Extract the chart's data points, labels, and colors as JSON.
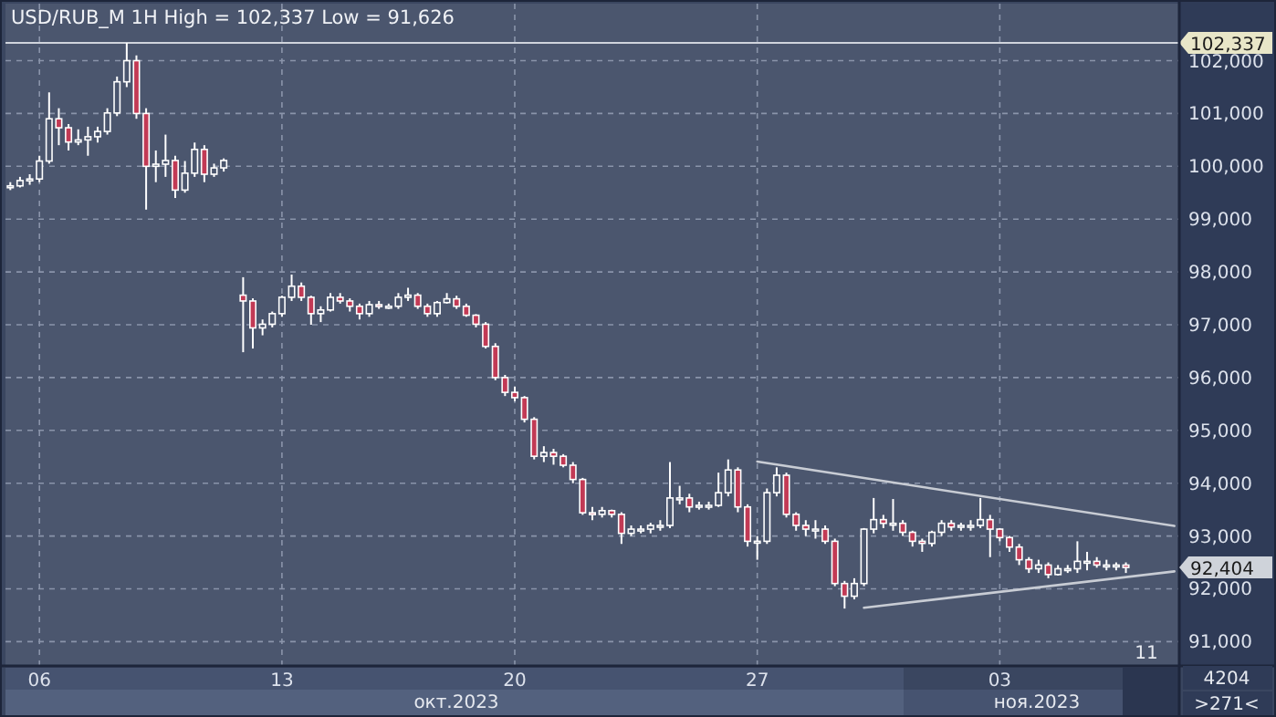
{
  "chart_data": {
    "type": "candlestick",
    "title": "USD/RUB_M 1H High = 102,337 Low = 91,626",
    "categories": [
      null,
      null,
      null,
      "06",
      null,
      null,
      null,
      null,
      null,
      null,
      null,
      null,
      null,
      null,
      null,
      null,
      null,
      null,
      null,
      null,
      null,
      null,
      null,
      null,
      null,
      null,
      null,
      null,
      "13",
      null,
      null,
      null,
      null,
      null,
      null,
      null,
      null,
      null,
      null,
      null,
      null,
      null,
      null,
      null,
      null,
      null,
      null,
      null,
      null,
      null,
      null,
      null,
      "20",
      null,
      null,
      null,
      null,
      null,
      null,
      null,
      null,
      null,
      null,
      null,
      null,
      null,
      null,
      null,
      null,
      null,
      null,
      null,
      null,
      null,
      null,
      null,
      null,
      "27",
      null,
      null,
      null,
      null,
      null,
      null,
      null,
      null,
      null,
      null,
      null,
      null,
      null,
      null,
      null,
      null,
      null,
      null,
      null,
      null,
      null,
      null,
      null,
      null,
      "03",
      null,
      null,
      null,
      null,
      null,
      null,
      null,
      null,
      null,
      null,
      null,
      null,
      null,
      null,
      null,
      null,
      null,
      null
    ],
    "series": [
      {
        "color": "#ffffff",
        "ohlc": [
          [
            99630,
            99700,
            99550,
            99630
          ],
          [
            99630,
            99800,
            99600,
            99730
          ],
          [
            99730,
            99850,
            99650,
            99760
          ],
          [
            99760,
            100200,
            99700,
            100100
          ],
          [
            100100,
            101400,
            100050,
            100900
          ],
          [
            100900,
            101100,
            100400,
            100730
          ],
          [
            100730,
            100800,
            100300,
            100460
          ],
          [
            100460,
            100700,
            100400,
            100500
          ],
          [
            100500,
            100750,
            100200,
            100560
          ],
          [
            100560,
            100750,
            100450,
            100660
          ],
          [
            100660,
            101100,
            100600,
            101010
          ],
          [
            101010,
            101700,
            100950,
            101600
          ],
          [
            101600,
            102337,
            101500,
            102000
          ],
          [
            102000,
            102100,
            100900,
            101000
          ],
          [
            101000,
            101100,
            99180,
            100000
          ],
          [
            100000,
            100300,
            99700,
            100040
          ],
          [
            100040,
            100600,
            99800,
            100110
          ],
          [
            100110,
            100200,
            99400,
            99550
          ],
          [
            99550,
            100100,
            99500,
            99870
          ],
          [
            99870,
            100450,
            99800,
            100320
          ],
          [
            100320,
            100400,
            99700,
            99850
          ],
          [
            99850,
            100050,
            99800,
            99970
          ],
          [
            99970,
            100150,
            99900,
            100110
          ],
          null,
          [
            97560,
            97900,
            96480,
            97450
          ],
          [
            97450,
            97500,
            96550,
            96940
          ],
          [
            96940,
            97100,
            96800,
            97010
          ],
          [
            97010,
            97250,
            96950,
            97210
          ],
          [
            97210,
            97550,
            97150,
            97520
          ],
          [
            97520,
            97950,
            97450,
            97730
          ],
          [
            97730,
            97800,
            97450,
            97520
          ],
          [
            97520,
            97550,
            97000,
            97210
          ],
          [
            97210,
            97350,
            97050,
            97280
          ],
          [
            97280,
            97600,
            97250,
            97520
          ],
          [
            97520,
            97600,
            97400,
            97450
          ],
          [
            97450,
            97500,
            97250,
            97350
          ],
          [
            97350,
            97400,
            97100,
            97210
          ],
          [
            97210,
            97450,
            97150,
            97380
          ],
          [
            97380,
            97450,
            97300,
            97350
          ],
          [
            97350,
            97400,
            97300,
            97350
          ],
          [
            97350,
            97600,
            97300,
            97520
          ],
          [
            97520,
            97700,
            97450,
            97560
          ],
          [
            97560,
            97600,
            97300,
            97350
          ],
          [
            97350,
            97400,
            97150,
            97210
          ],
          [
            97210,
            97450,
            97150,
            97420
          ],
          [
            97420,
            97600,
            97400,
            97490
          ],
          [
            97490,
            97550,
            97300,
            97350
          ],
          [
            97350,
            97400,
            97150,
            97180
          ],
          [
            97180,
            97200,
            96950,
            97010
          ],
          [
            97010,
            97050,
            96550,
            96590
          ],
          [
            96590,
            96650,
            95950,
            96000
          ],
          [
            96000,
            96050,
            95650,
            95720
          ],
          [
            95720,
            95830,
            95550,
            95620
          ],
          [
            95620,
            95650,
            95150,
            95210
          ],
          [
            95210,
            95250,
            94450,
            94510
          ],
          [
            94510,
            94700,
            94400,
            94580
          ],
          [
            94580,
            94650,
            94350,
            94510
          ],
          [
            94510,
            94550,
            94300,
            94340
          ],
          [
            94340,
            94400,
            94000,
            94070
          ],
          [
            94070,
            94100,
            93400,
            93440
          ],
          [
            93440,
            93550,
            93300,
            93410
          ],
          [
            93410,
            93550,
            93350,
            93480
          ],
          [
            93480,
            93500,
            93350,
            93410
          ],
          [
            93410,
            93450,
            92850,
            93050
          ],
          [
            93050,
            93200,
            93000,
            93130
          ],
          [
            93130,
            93200,
            93050,
            93130
          ],
          [
            93130,
            93250,
            93050,
            93200
          ],
          [
            93200,
            93300,
            93100,
            93200
          ],
          [
            93200,
            94400,
            93150,
            93720
          ],
          [
            93720,
            93950,
            93600,
            93720
          ],
          [
            93720,
            93800,
            93450,
            93550
          ],
          [
            93550,
            93650,
            93500,
            93580
          ],
          [
            93580,
            93650,
            93500,
            93580
          ],
          [
            93580,
            94200,
            93550,
            93820
          ],
          [
            93820,
            94450,
            93750,
            94250
          ],
          [
            94250,
            94300,
            93450,
            93550
          ],
          [
            93550,
            93600,
            92800,
            92900
          ],
          [
            92900,
            93000,
            92550,
            92900
          ],
          [
            92900,
            93900,
            92850,
            93820
          ],
          [
            93820,
            94300,
            93750,
            94150
          ],
          [
            94150,
            94200,
            93350,
            93410
          ],
          [
            93410,
            93450,
            93100,
            93200
          ],
          [
            93200,
            93300,
            93000,
            93130
          ],
          [
            93130,
            93300,
            92950,
            93130
          ],
          [
            93130,
            93200,
            92850,
            92900
          ],
          [
            92900,
            92950,
            92050,
            92100
          ],
          [
            92100,
            92150,
            91626,
            91860
          ],
          [
            91860,
            92200,
            91800,
            92100
          ],
          [
            92100,
            93150,
            92050,
            93130
          ],
          [
            93130,
            93720,
            93050,
            93310
          ],
          [
            93310,
            93400,
            93150,
            93240
          ],
          [
            93240,
            93700,
            93100,
            93240
          ],
          [
            93240,
            93300,
            93000,
            93070
          ],
          [
            93070,
            93100,
            92800,
            92900
          ],
          [
            92900,
            92950,
            92700,
            92860
          ],
          [
            92860,
            93100,
            92800,
            93070
          ],
          [
            93070,
            93300,
            93000,
            93240
          ],
          [
            93240,
            93300,
            93100,
            93170
          ],
          [
            93170,
            93250,
            93100,
            93200
          ],
          [
            93200,
            93300,
            93100,
            93200
          ],
          [
            93200,
            93720,
            93150,
            93310
          ],
          [
            93310,
            93400,
            92600,
            93130
          ],
          [
            93130,
            93150,
            92900,
            92970
          ],
          [
            92970,
            93000,
            92700,
            92790
          ],
          [
            92790,
            92850,
            92450,
            92550
          ],
          [
            92550,
            92600,
            92300,
            92380
          ],
          [
            92380,
            92550,
            92300,
            92450
          ],
          [
            92450,
            92500,
            92200,
            92270
          ],
          [
            92270,
            92450,
            92250,
            92380
          ],
          [
            92380,
            92450,
            92300,
            92380
          ],
          [
            92380,
            92900,
            92300,
            92520
          ],
          [
            92520,
            92700,
            92350,
            92520
          ],
          [
            92520,
            92600,
            92400,
            92450
          ],
          [
            92450,
            92550,
            92350,
            92450
          ],
          [
            92450,
            92500,
            92350,
            92450
          ],
          [
            92450,
            92500,
            92300,
            92404
          ],
          null,
          null,
          null,
          null,
          null
        ]
      },
      {
        "type": "line",
        "color": "#c8ccd4",
        "values": [
          null,
          null,
          null,
          null,
          null,
          null,
          null,
          null,
          null,
          null,
          null,
          null,
          null,
          null,
          null,
          null,
          null,
          null,
          null,
          null,
          null,
          null,
          null,
          null,
          null,
          null,
          null,
          null,
          null,
          null,
          null,
          null,
          null,
          null,
          null,
          null,
          null,
          null,
          null,
          null,
          null,
          null,
          null,
          null,
          null,
          null,
          null,
          null,
          null,
          null,
          null,
          null,
          null,
          null,
          null,
          null,
          null,
          null,
          null,
          null,
          null,
          null,
          null,
          null,
          null,
          null,
          null,
          null,
          null,
          null,
          null,
          null,
          null,
          null,
          null,
          null,
          null,
          94410,
          null,
          null,
          null,
          null,
          null,
          null,
          null,
          null,
          null,
          null,
          null,
          null,
          null,
          null,
          null,
          null,
          null,
          null,
          null,
          null,
          null,
          null,
          null,
          null,
          null,
          null,
          null,
          null,
          null,
          null,
          null,
          null,
          null,
          null,
          null,
          null,
          null,
          null,
          null,
          null,
          null,
          null,
          93190
        ]
      },
      {
        "type": "line",
        "color": "#c8ccd4",
        "values": [
          null,
          null,
          null,
          null,
          null,
          null,
          null,
          null,
          null,
          null,
          null,
          null,
          null,
          null,
          null,
          null,
          null,
          null,
          null,
          null,
          null,
          null,
          null,
          null,
          null,
          null,
          null,
          null,
          null,
          null,
          null,
          null,
          null,
          null,
          null,
          null,
          null,
          null,
          null,
          null,
          null,
          null,
          null,
          null,
          null,
          null,
          null,
          null,
          null,
          null,
          null,
          null,
          null,
          null,
          null,
          null,
          null,
          null,
          null,
          null,
          null,
          null,
          null,
          null,
          null,
          null,
          null,
          null,
          null,
          null,
          null,
          null,
          null,
          null,
          null,
          null,
          null,
          null,
          null,
          null,
          null,
          null,
          null,
          null,
          null,
          null,
          null,
          null,
          91640,
          null,
          null,
          null,
          null,
          null,
          null,
          null,
          null,
          null,
          null,
          null,
          null,
          null,
          null,
          null,
          null,
          null,
          null,
          null,
          null,
          null,
          null,
          null,
          null,
          null,
          null,
          null,
          null,
          null,
          null,
          null,
          92330
        ]
      }
    ],
    "ylim": [
      90540,
      103080
    ],
    "yticks": [
      {
        "value": 91000,
        "label": "91,000"
      },
      {
        "value": 92000,
        "label": "92,000"
      },
      {
        "value": 93000,
        "label": "93,000"
      },
      {
        "value": 94000,
        "label": "94,000"
      },
      {
        "value": 95000,
        "label": "95,000"
      },
      {
        "value": 96000,
        "label": "96,000"
      },
      {
        "value": 97000,
        "label": "97,000"
      },
      {
        "value": 98000,
        "label": "98,000"
      },
      {
        "value": 99000,
        "label": "99,000"
      },
      {
        "value": 100000,
        "label": "100,000"
      },
      {
        "value": 101000,
        "label": "101,000"
      },
      {
        "value": 102000,
        "label": "102,000"
      }
    ],
    "grid": true,
    "ref_lines": [
      {
        "axis": "y",
        "value": 102337,
        "label": "102,337",
        "color": "#d0d4dc"
      }
    ],
    "annotations": [
      "92,404",
      "11",
      "окт.2023",
      "ноя.2023",
      "4204",
      ">271<"
    ]
  }
}
